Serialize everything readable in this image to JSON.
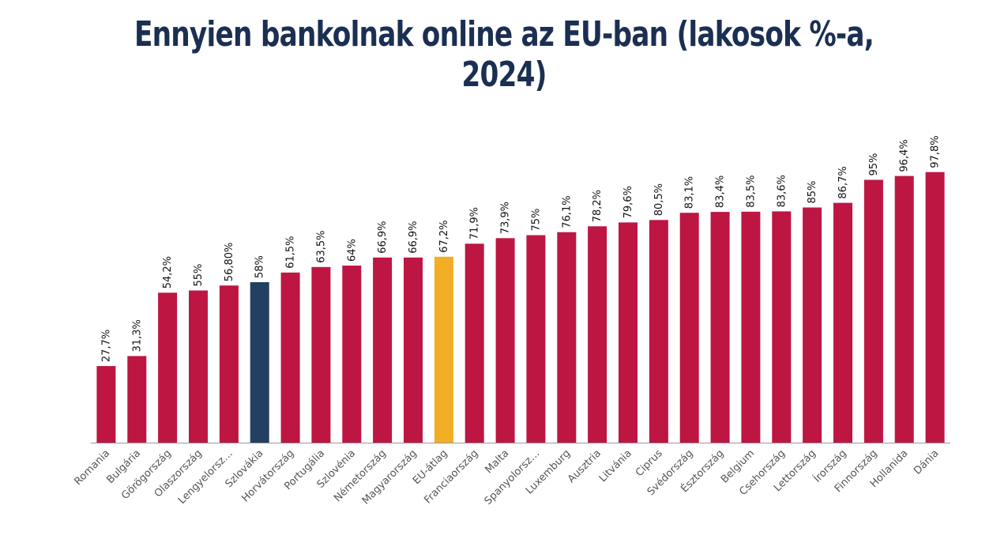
{
  "chart_data": {
    "type": "bar",
    "title": "Ennyien bankolnak online az EU-ban (lakosok %-a, 2024)",
    "categories": [
      "Romania",
      "Bulgária",
      "Görögország",
      "Olaszország",
      "Lengyelorsz…",
      "Szlovákia",
      "Horvátország",
      "Portugália",
      "Szlovénia",
      "Németország",
      "Magyarország",
      "EU-átlag",
      "Franciaország",
      "Malta",
      "Spanyolorsz…",
      "Luxemburg",
      "Ausztria",
      "Litvánia",
      "Ciprus",
      "Svédország",
      "Észtország",
      "Belgium",
      "Csehország",
      "Lettország",
      "Írország",
      "Finnország",
      "Hollanida",
      "Dánia"
    ],
    "values": [
      27.7,
      31.3,
      54.2,
      55,
      56.8,
      58,
      61.5,
      63.5,
      64,
      66.9,
      66.9,
      67.2,
      71.9,
      73.9,
      75,
      76.1,
      78.2,
      79.6,
      80.5,
      83.1,
      83.4,
      83.5,
      83.6,
      85,
      86.7,
      95,
      96.4,
      97.8
    ],
    "value_labels": [
      "27,7%",
      "31,3%",
      "54,2%",
      "55%",
      "56,80%",
      "58%",
      "61,5%",
      "63,5%",
      "64%",
      "66,9%",
      "66,9%",
      "67,2%",
      "71,9%",
      "73,9%",
      "75%",
      "76,1%",
      "78,2%",
      "79,6%",
      "80,5%",
      "83,1%",
      "83,4%",
      "83,5%",
      "83,6%",
      "85%",
      "86,7%",
      "95%",
      "96,4%",
      "97,8%"
    ],
    "highlight": {
      "Szlovákia": "#233f62",
      "EU-átlag": "#f2ae24"
    },
    "colors": {
      "default": "#bd1642",
      "axis": "#999999",
      "title": "#1b2f52"
    },
    "ylim": [
      0,
      100
    ],
    "xlabel": "",
    "ylabel": "",
    "grid": false,
    "legend": "none"
  }
}
